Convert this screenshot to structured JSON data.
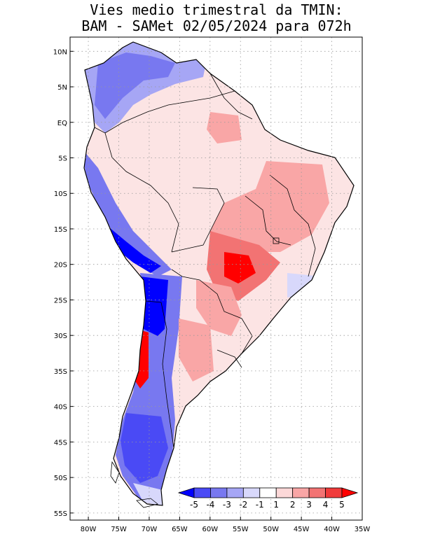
{
  "title_line1": "Vies medio trimestral da TMIN:",
  "title_line2": "BAM - SAMet 02/05/2024  para 072h",
  "map": {
    "lon_range": [
      -83,
      -35
    ],
    "lat_range": [
      -56,
      12
    ],
    "lat_ticks": [
      {
        "lat": 10,
        "label": "10N"
      },
      {
        "lat": 5,
        "label": "5N"
      },
      {
        "lat": 0,
        "label": "EQ"
      },
      {
        "lat": -5,
        "label": "5S"
      },
      {
        "lat": -10,
        "label": "10S"
      },
      {
        "lat": -15,
        "label": "15S"
      },
      {
        "lat": -20,
        "label": "20S"
      },
      {
        "lat": -25,
        "label": "25S"
      },
      {
        "lat": -30,
        "label": "30S"
      },
      {
        "lat": -35,
        "label": "35S"
      },
      {
        "lat": -40,
        "label": "40S"
      },
      {
        "lat": -45,
        "label": "45S"
      },
      {
        "lat": -50,
        "label": "50S"
      },
      {
        "lat": -55,
        "label": "55S"
      }
    ],
    "lon_ticks": [
      {
        "lon": -80,
        "label": "80W"
      },
      {
        "lon": -75,
        "label": "75W"
      },
      {
        "lon": -70,
        "label": "70W"
      },
      {
        "lon": -65,
        "label": "65W"
      },
      {
        "lon": -60,
        "label": "60W"
      },
      {
        "lon": -55,
        "label": "55W"
      },
      {
        "lon": -50,
        "label": "50W"
      },
      {
        "lon": -45,
        "label": "45W"
      },
      {
        "lon": -40,
        "label": "40W"
      },
      {
        "lon": -35,
        "label": "35W"
      }
    ],
    "grid": true
  },
  "colorbar": {
    "labels": [
      "-5",
      "-4",
      "-3",
      "-2",
      "-1",
      "1",
      "2",
      "3",
      "4",
      "5"
    ],
    "colors": [
      "#0000ff",
      "#4a4af5",
      "#7878f0",
      "#a6a6f5",
      "#d8d8fb",
      "#ffffff",
      "#fcd8d8",
      "#f9a6a6",
      "#f27373",
      "#f03a3a",
      "#ff0000"
    ]
  },
  "colors": {
    "positive_bias": "#f9a6a6",
    "negative_bias": "#7878f0",
    "strong_negative": "#0000ff",
    "strong_positive": "#ff0000"
  }
}
